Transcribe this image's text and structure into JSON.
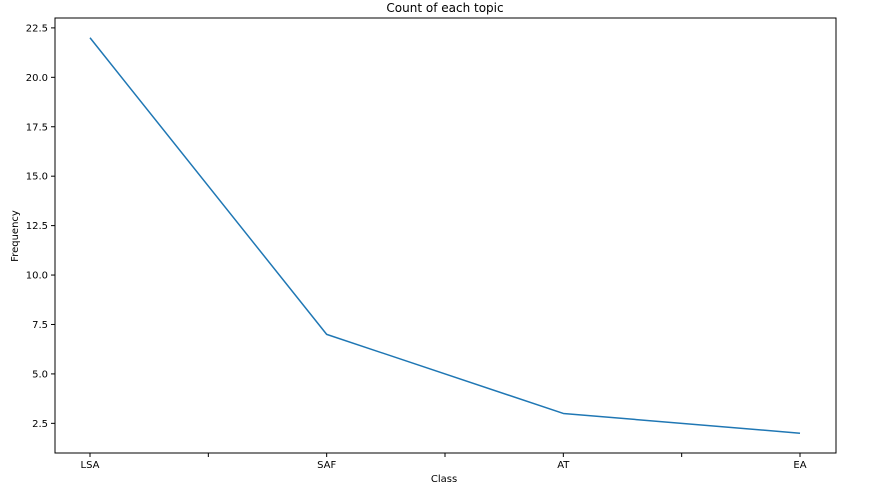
{
  "chart_data": {
    "type": "line",
    "title": "Count of each topic",
    "xlabel": "Class",
    "ylabel": "Frequency",
    "categories": [
      "LSA",
      "SAF",
      "AT",
      "EA"
    ],
    "series": [
      {
        "values": [
          22,
          7,
          3,
          2
        ]
      }
    ],
    "ylim": [
      1.0,
      23.0
    ],
    "yticks": [
      "2.5",
      "5.0",
      "7.5",
      "10.0",
      "12.5",
      "15.0",
      "17.5",
      "20.0",
      "22.5"
    ],
    "grid": false,
    "line_color": "#1f77b4"
  }
}
